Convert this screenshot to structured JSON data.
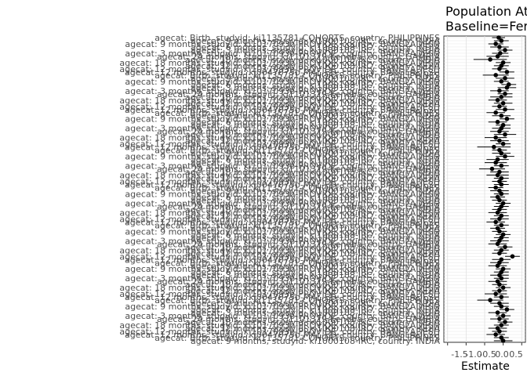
{
  "chart_data": {
    "type": "scatter",
    "style": "forest plot with horizontal confidence intervals",
    "title_line1": "Population At",
    "title_line2": "Baseline=Fer",
    "xlabel": "Estimate",
    "ylabel": "",
    "xticks": [
      "-1.5",
      "-1.0",
      "-0.5",
      "0.0",
      "0.5"
    ],
    "xlim": [
      -1.6,
      0.6
    ],
    "grid": true,
    "visible_labels": [
      "agecat: Birth, studyid: ki1135781-COHORTS, country: PHILIPPINES",
      "agecat: 9 months, studyid: ki1000108-IRC, country: INDIA",
      "agecat: 9 months, studyid: ki1017093b-PROVIDE, country: BANGLADESH",
      "agecat: 6 months, studyid: ki1000108-IRC, country: INDIA",
      "agecat: 3 months, studyid: ki1000108-IRC, country: INDIA",
      "agecat: 3 months, studyid: ki1017093b-PROVIDE, country: BANGLADESH",
      "agecat: 24 months, studyid: ki1101329-Keneba, country: GAMBIA",
      "agecat: 18 months, studyid: ki1000108-IRC, country: INDIA",
      "agecat: 18 months, studyid: ki1017093b-PROVIDE, country: BANGLADESH",
      "agecat: 12 months, studyid: ki1000108-IRC, country: INDIA",
      "agecat: 12 months, studyid: ki1017093b-PROVIDE, country: BANGLADESH",
      "agecat: 12 months, studyid: ki0047075b-MAL-ED, country: BANGLADESH"
    ],
    "series": [
      {
        "points": [
          {
            "est": -0.12,
            "lo": -0.3,
            "hi": 0.05
          },
          {
            "est": -0.05,
            "lo": -0.25,
            "hi": 0.15
          },
          {
            "est": -0.2,
            "lo": -0.4,
            "hi": 0.0
          },
          {
            "est": -0.1,
            "lo": -0.35,
            "hi": 0.15
          },
          {
            "est": 0.05,
            "lo": -0.15,
            "hi": 0.25
          },
          {
            "est": -0.08,
            "lo": -0.3,
            "hi": 0.14
          },
          {
            "est": -0.15,
            "lo": -0.45,
            "hi": 0.15
          },
          {
            "est": -0.35,
            "lo": -0.8,
            "hi": 0.1
          },
          {
            "est": 0.0,
            "lo": -0.2,
            "hi": 0.2
          },
          {
            "est": -0.05,
            "lo": -0.25,
            "hi": 0.15
          },
          {
            "est": -0.1,
            "lo": -0.3,
            "hi": 0.1
          },
          {
            "est": 0.1,
            "lo": -0.1,
            "hi": 0.3
          },
          {
            "est": -0.2,
            "lo": -0.55,
            "hi": 0.15
          },
          {
            "est": 0.05,
            "lo": -0.2,
            "hi": 0.3
          },
          {
            "est": -0.05,
            "lo": -0.25,
            "hi": 0.15
          },
          {
            "est": 0.15,
            "lo": -0.05,
            "hi": 0.35
          },
          {
            "est": 0.1,
            "lo": -0.15,
            "hi": 0.35
          },
          {
            "est": -0.1,
            "lo": -0.35,
            "hi": 0.15
          },
          {
            "est": 0.05,
            "lo": -0.15,
            "hi": 0.25
          },
          {
            "est": -0.05,
            "lo": -0.35,
            "hi": 0.25
          },
          {
            "est": -0.15,
            "lo": -0.4,
            "hi": 0.1
          },
          {
            "est": 0.0,
            "lo": -0.25,
            "hi": 0.25
          },
          {
            "est": -0.1,
            "lo": -0.3,
            "hi": 0.1
          },
          {
            "est": 0.05,
            "lo": -0.2,
            "hi": 0.3
          },
          {
            "est": -0.2,
            "lo": -0.45,
            "hi": 0.05
          },
          {
            "est": -0.05,
            "lo": -0.3,
            "hi": 0.2
          },
          {
            "est": 0.1,
            "lo": -0.1,
            "hi": 0.3
          },
          {
            "est": -0.15,
            "lo": -0.4,
            "hi": 0.1
          },
          {
            "est": 0.0,
            "lo": -0.2,
            "hi": 0.2
          },
          {
            "est": -0.05,
            "lo": -0.3,
            "hi": 0.2
          },
          {
            "est": -0.1,
            "lo": -0.35,
            "hi": 0.15
          },
          {
            "est": 0.05,
            "lo": -0.25,
            "hi": 0.35
          },
          {
            "est": -0.2,
            "lo": -0.5,
            "hi": 0.1
          },
          {
            "est": -0.1,
            "lo": -0.35,
            "hi": 0.15
          },
          {
            "est": 0.0,
            "lo": -0.2,
            "hi": 0.2
          },
          {
            "est": -0.25,
            "lo": -0.7,
            "hi": 0.2
          },
          {
            "est": -0.1,
            "lo": -0.3,
            "hi": 0.1
          },
          {
            "est": -0.05,
            "lo": -0.3,
            "hi": 0.2
          },
          {
            "est": 0.05,
            "lo": -0.2,
            "hi": 0.3
          },
          {
            "est": -0.15,
            "lo": -0.45,
            "hi": 0.15
          },
          {
            "est": -0.2,
            "lo": -0.5,
            "hi": 0.1
          },
          {
            "est": -0.05,
            "lo": -0.25,
            "hi": 0.15
          },
          {
            "est": -0.3,
            "lo": -0.65,
            "hi": 0.05
          },
          {
            "est": -0.1,
            "lo": -0.35,
            "hi": 0.15
          },
          {
            "est": -0.15,
            "lo": -0.45,
            "hi": 0.15
          },
          {
            "est": -0.05,
            "lo": -0.25,
            "hi": 0.15
          },
          {
            "est": -0.1,
            "lo": -0.3,
            "hi": 0.1
          },
          {
            "est": -0.05,
            "lo": -0.25,
            "hi": 0.15
          },
          {
            "est": -0.2,
            "lo": -0.4,
            "hi": 0.0
          },
          {
            "est": -0.1,
            "lo": -0.35,
            "hi": 0.15
          },
          {
            "est": -0.05,
            "lo": -0.25,
            "hi": 0.15
          },
          {
            "est": -0.15,
            "lo": -0.35,
            "hi": 0.05
          },
          {
            "est": -0.1,
            "lo": -0.3,
            "hi": 0.1
          },
          {
            "est": 0.0,
            "lo": -0.2,
            "hi": 0.2
          },
          {
            "est": -0.05,
            "lo": -0.25,
            "hi": 0.15
          },
          {
            "est": -0.1,
            "lo": -0.3,
            "hi": 0.1
          },
          {
            "est": -0.15,
            "lo": -0.4,
            "hi": 0.1
          },
          {
            "est": -0.05,
            "lo": -0.25,
            "hi": 0.15
          },
          {
            "est": -0.1,
            "lo": -0.35,
            "hi": 0.15
          },
          {
            "est": -0.2,
            "lo": -0.45,
            "hi": 0.05
          },
          {
            "est": -0.05,
            "lo": -0.25,
            "hi": 0.15
          },
          {
            "est": -0.15,
            "lo": -0.35,
            "hi": 0.05
          },
          {
            "est": -0.1,
            "lo": -0.3,
            "hi": 0.1
          },
          {
            "est": 0.0,
            "lo": -0.2,
            "hi": 0.2
          },
          {
            "est": -0.05,
            "lo": -0.25,
            "hi": 0.15
          },
          {
            "est": -0.1,
            "lo": -0.35,
            "hi": 0.15
          },
          {
            "est": -0.15,
            "lo": -0.4,
            "hi": 0.1
          },
          {
            "est": 0.05,
            "lo": -0.15,
            "hi": 0.25
          },
          {
            "est": -0.05,
            "lo": -0.25,
            "hi": 0.15
          },
          {
            "est": -0.1,
            "lo": -0.3,
            "hi": 0.1
          },
          {
            "est": 0.25,
            "lo": 0.05,
            "hi": 0.45
          },
          {
            "est": -0.05,
            "lo": -0.3,
            "hi": 0.2
          },
          {
            "est": -0.1,
            "lo": -0.35,
            "hi": 0.15
          },
          {
            "est": -0.15,
            "lo": -0.4,
            "hi": 0.1
          },
          {
            "est": 0.0,
            "lo": -0.2,
            "hi": 0.2
          },
          {
            "est": -0.05,
            "lo": -0.25,
            "hi": 0.15
          },
          {
            "est": -0.1,
            "lo": -0.35,
            "hi": 0.15
          },
          {
            "est": -0.05,
            "lo": -0.25,
            "hi": 0.15
          },
          {
            "est": -0.15,
            "lo": -0.4,
            "hi": 0.1
          },
          {
            "est": -0.1,
            "lo": -0.3,
            "hi": 0.1
          },
          {
            "est": 0.0,
            "lo": -0.2,
            "hi": 0.2
          },
          {
            "est": -0.1,
            "lo": -0.3,
            "hi": 0.1
          },
          {
            "est": -0.2,
            "lo": -0.5,
            "hi": 0.1
          },
          {
            "est": -0.05,
            "lo": -0.25,
            "hi": 0.15
          },
          {
            "est": -0.35,
            "lo": -0.7,
            "hi": 0.0
          },
          {
            "est": -0.1,
            "lo": -0.35,
            "hi": 0.15
          },
          {
            "est": -0.05,
            "lo": -0.25,
            "hi": 0.15
          },
          {
            "est": 0.1,
            "lo": -0.1,
            "hi": 0.3
          },
          {
            "est": -0.15,
            "lo": -0.4,
            "hi": 0.1
          },
          {
            "est": 0.0,
            "lo": -0.2,
            "hi": 0.2
          },
          {
            "est": -0.1,
            "lo": -0.35,
            "hi": 0.15
          },
          {
            "est": 0.05,
            "lo": -0.15,
            "hi": 0.25
          },
          {
            "est": -0.05,
            "lo": -0.25,
            "hi": 0.15
          },
          {
            "est": -0.15,
            "lo": -0.4,
            "hi": 0.1
          },
          {
            "est": -0.1,
            "lo": -0.3,
            "hi": 0.1
          },
          {
            "est": -0.2,
            "lo": -0.45,
            "hi": 0.05
          },
          {
            "est": -0.05,
            "lo": -0.25,
            "hi": 0.15
          },
          {
            "est": 0.0,
            "lo": -0.25,
            "hi": 0.25
          }
        ]
      }
    ]
  }
}
